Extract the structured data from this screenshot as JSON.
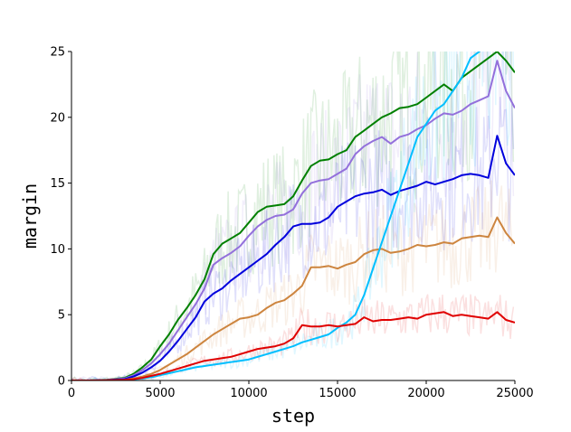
{
  "chart_data": {
    "type": "line",
    "title": "",
    "xlabel": "step",
    "ylabel": "margin",
    "xlim": [
      0,
      25000
    ],
    "ylim": [
      0,
      25
    ],
    "x_ticks": [
      0,
      5000,
      10000,
      15000,
      20000,
      25000
    ],
    "y_ticks": [
      0,
      5,
      10,
      15,
      20,
      25
    ],
    "grid": false,
    "legend": "none",
    "x": [
      0,
      1000,
      2000,
      3000,
      3500,
      4000,
      4500,
      5000,
      5500,
      6000,
      6500,
      7000,
      7500,
      8000,
      8500,
      9000,
      9500,
      10000,
      10500,
      11000,
      11500,
      12000,
      12500,
      13000,
      13500,
      14000,
      14500,
      15000,
      15500,
      16000,
      16500,
      17000,
      17500,
      18000,
      18500,
      19000,
      19500,
      20000,
      20500,
      21000,
      21500,
      22000,
      22500,
      23000,
      23500,
      24000,
      24500,
      25000
    ],
    "series": [
      {
        "color": "#008000",
        "values": [
          0,
          0,
          0.05,
          0.2,
          0.5,
          1.0,
          1.6,
          2.6,
          3.5,
          4.6,
          5.5,
          6.5,
          7.7,
          9.6,
          10.4,
          10.8,
          11.2,
          12.0,
          12.8,
          13.2,
          13.3,
          13.4,
          14.0,
          15.2,
          16.3,
          16.7,
          16.8,
          17.2,
          17.5,
          18.5,
          19.0,
          19.5,
          20.0,
          20.3,
          20.7,
          20.8,
          21.0,
          21.5,
          22.0,
          22.5,
          22.0,
          23.0,
          23.5,
          24.0,
          24.5,
          25.0,
          24.3,
          23.4
        ]
      },
      {
        "color": "#9370DB",
        "values": [
          0,
          0,
          0.04,
          0.15,
          0.4,
          0.8,
          1.3,
          2.0,
          2.8,
          3.8,
          4.8,
          5.8,
          7.0,
          8.8,
          9.3,
          9.7,
          10.2,
          11.0,
          11.7,
          12.2,
          12.5,
          12.6,
          13.0,
          14.2,
          15.0,
          15.2,
          15.3,
          15.7,
          16.1,
          17.2,
          17.8,
          18.2,
          18.5,
          18.0,
          18.5,
          18.7,
          19.1,
          19.4,
          19.9,
          20.3,
          20.2,
          20.5,
          21.0,
          21.3,
          21.6,
          24.3,
          22.0,
          20.7
        ]
      },
      {
        "color": "#0000DD",
        "values": [
          0,
          0,
          0.03,
          0.1,
          0.3,
          0.6,
          1.0,
          1.5,
          2.2,
          3.0,
          3.9,
          4.8,
          6.0,
          6.6,
          7.0,
          7.6,
          8.1,
          8.6,
          9.1,
          9.6,
          10.3,
          10.9,
          11.7,
          11.9,
          11.9,
          12.0,
          12.4,
          13.2,
          13.6,
          14.0,
          14.2,
          14.3,
          14.5,
          14.1,
          14.4,
          14.6,
          14.8,
          15.1,
          14.9,
          15.1,
          15.3,
          15.6,
          15.7,
          15.6,
          15.4,
          18.6,
          16.5,
          15.6
        ]
      },
      {
        "color": "#CD853F",
        "values": [
          0,
          0,
          0.02,
          0.05,
          0.15,
          0.3,
          0.5,
          0.8,
          1.2,
          1.6,
          2.0,
          2.5,
          3.0,
          3.5,
          3.9,
          4.3,
          4.7,
          4.8,
          5.0,
          5.5,
          5.9,
          6.1,
          6.6,
          7.2,
          8.6,
          8.6,
          8.7,
          8.5,
          8.8,
          9.0,
          9.6,
          9.9,
          10.0,
          9.7,
          9.8,
          10.0,
          10.3,
          10.2,
          10.3,
          10.5,
          10.4,
          10.8,
          10.9,
          11.0,
          10.9,
          12.4,
          11.2,
          10.4
        ]
      },
      {
        "color": "#00BFFF",
        "values": [
          0,
          0,
          0.01,
          0.03,
          0.08,
          0.15,
          0.25,
          0.4,
          0.55,
          0.7,
          0.85,
          1.0,
          1.1,
          1.2,
          1.3,
          1.4,
          1.5,
          1.6,
          1.8,
          2.0,
          2.2,
          2.4,
          2.6,
          2.9,
          3.1,
          3.3,
          3.5,
          4.0,
          4.4,
          5.0,
          6.5,
          8.5,
          10.5,
          12.5,
          14.5,
          16.5,
          18.5,
          19.5,
          20.5,
          21.0,
          22.0,
          23.0,
          24.5,
          25.0,
          26.0,
          27.0,
          27.0,
          27.0
        ]
      },
      {
        "color": "#E00000",
        "values": [
          0,
          0,
          0.02,
          0.05,
          0.1,
          0.2,
          0.35,
          0.5,
          0.7,
          0.9,
          1.1,
          1.3,
          1.5,
          1.6,
          1.7,
          1.8,
          2.0,
          2.2,
          2.4,
          2.5,
          2.6,
          2.8,
          3.2,
          4.2,
          4.1,
          4.1,
          4.2,
          4.1,
          4.2,
          4.3,
          4.8,
          4.5,
          4.6,
          4.6,
          4.7,
          4.8,
          4.7,
          5.0,
          5.1,
          5.2,
          4.9,
          5.0,
          4.9,
          4.8,
          4.7,
          5.2,
          4.6,
          4.4
        ]
      }
    ]
  }
}
